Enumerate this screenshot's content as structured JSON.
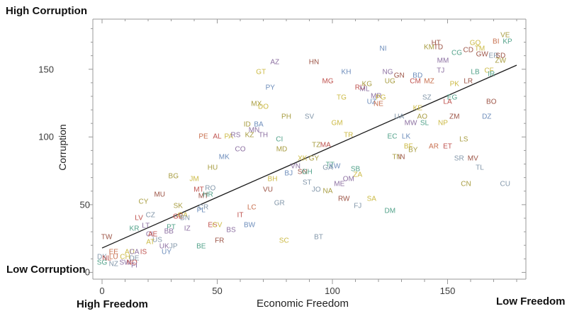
{
  "titles": {
    "top_left": "High Corruption",
    "bottom_left_y": "Low Corruption",
    "y_axis": "Corruption",
    "x_axis": "Economic Freedom",
    "x_left": "High Freedom",
    "x_right": "Low Freedom"
  },
  "palette": {
    "b": "#6d8dbb",
    "s": "#8498ab",
    "r": "#bf524e",
    "d": "#9d5547",
    "o": "#c8704f",
    "y": "#ccba45",
    "v": "#a89d42",
    "t": "#52a28a",
    "p": "#8d71a2"
  },
  "frame_color": "#999999",
  "trend_color": "#1a1a1a",
  "chart_data": {
    "type": "scatter",
    "title": "",
    "xlabel": "Economic Freedom",
    "ylabel": "Corruption",
    "xlim": [
      -4,
      184
    ],
    "ylim": [
      -5,
      187
    ],
    "x_ticks": [
      {
        "v": "0",
        "x": 0
      },
      {
        "v": "50",
        "x": 50
      },
      {
        "v": "100",
        "x": 100
      },
      {
        "v": "150",
        "x": 150
      }
    ],
    "y_ticks": [
      {
        "v": "0",
        "y": 0,
        "right": 127
      },
      {
        "v": "50",
        "y": 50,
        "right": 127
      },
      {
        "v": "100",
        "y": 100,
        "right": 76
      },
      {
        "v": "150",
        "y": 150,
        "right": 76
      }
    ],
    "minor_tick_step": 10,
    "trend_line": {
      "x1": 0,
      "y1": 18,
      "x2": 180,
      "y2": 153
    },
    "points": [
      [
        "VE",
        175,
        175,
        "v"
      ],
      [
        "GQ",
        162,
        169,
        "y"
      ],
      [
        "BI",
        171,
        170,
        "o"
      ],
      [
        "KP",
        176,
        170,
        "t"
      ],
      [
        "HT",
        145,
        169,
        "d"
      ],
      [
        "KM",
        142,
        166,
        "v"
      ],
      [
        "TD",
        146,
        166,
        "d"
      ],
      [
        "CG",
        154,
        162,
        "t"
      ],
      [
        "CD",
        159,
        164,
        "d"
      ],
      [
        "TM",
        164,
        165,
        "y"
      ],
      [
        "GW",
        165,
        161,
        "d"
      ],
      [
        "ER",
        170,
        160,
        "s"
      ],
      [
        "SD",
        173,
        160,
        "d"
      ],
      [
        "ZW",
        173,
        156,
        "v"
      ],
      [
        "NI",
        122,
        165,
        "b"
      ],
      [
        "MM",
        148,
        156,
        "p"
      ],
      [
        "HN",
        92,
        155,
        "d"
      ],
      [
        "AZ",
        75,
        155,
        "p"
      ],
      [
        "GT",
        69,
        148,
        "y"
      ],
      [
        "KH",
        106,
        148,
        "b"
      ],
      [
        "NG",
        124,
        148,
        "p"
      ],
      [
        "GN",
        129,
        145,
        "d"
      ],
      [
        "BD",
        137,
        145,
        "b"
      ],
      [
        "TJ",
        147,
        149,
        "p"
      ],
      [
        "LB",
        162,
        148,
        "t"
      ],
      [
        "CF",
        168,
        149,
        "y"
      ],
      [
        "IR",
        169,
        146,
        "t"
      ],
      [
        "MG",
        98,
        141,
        "r"
      ],
      [
        "UG",
        125,
        141,
        "v"
      ],
      [
        "CM",
        136,
        141,
        "r"
      ],
      [
        "MZ",
        142,
        141,
        "o"
      ],
      [
        "PK",
        153,
        139,
        "y"
      ],
      [
        "LR",
        159,
        141,
        "d"
      ],
      [
        "KG",
        115,
        139,
        "v"
      ],
      [
        "RU",
        112,
        136,
        "r"
      ],
      [
        "ML",
        114,
        135,
        "p"
      ],
      [
        "PY",
        73,
        136,
        "b"
      ],
      [
        "TG",
        104,
        129,
        "y"
      ],
      [
        "MR",
        119,
        130,
        "p"
      ],
      [
        "PG",
        121,
        129,
        "y"
      ],
      [
        "UZ",
        117,
        126,
        "b"
      ],
      [
        "NE",
        120,
        124,
        "o"
      ],
      [
        "SZ",
        141,
        129,
        "s"
      ],
      [
        "EG",
        152,
        129,
        "t"
      ],
      [
        "LA",
        150,
        126,
        "r"
      ],
      [
        "BO",
        169,
        126,
        "d"
      ],
      [
        "MX",
        67,
        124,
        "v"
      ],
      [
        "DO",
        70,
        122,
        "y"
      ],
      [
        "KE",
        137,
        121,
        "y"
      ],
      [
        "PH",
        80,
        115,
        "v"
      ],
      [
        "SV",
        90,
        115,
        "s"
      ],
      [
        "UA",
        129,
        115,
        "s"
      ],
      [
        "AO",
        139,
        115,
        "v"
      ],
      [
        "ZM",
        153,
        115,
        "d"
      ],
      [
        "DZ",
        167,
        115,
        "b"
      ],
      [
        "GM",
        102,
        110,
        "y"
      ],
      [
        "MW",
        134,
        110,
        "p"
      ],
      [
        "SL",
        140,
        110,
        "t"
      ],
      [
        "NP",
        148,
        110,
        "y"
      ],
      [
        "ID",
        63,
        109,
        "v"
      ],
      [
        "BA",
        68,
        109,
        "b"
      ],
      [
        "MN",
        66,
        105,
        "p"
      ],
      [
        "PE",
        44,
        100,
        "o"
      ],
      [
        "AL",
        50,
        100,
        "r"
      ],
      [
        "PA",
        55,
        100,
        "y"
      ],
      [
        "RS",
        58,
        101,
        "p"
      ],
      [
        "KZ",
        64,
        101,
        "v"
      ],
      [
        "TH",
        70,
        101,
        "p"
      ],
      [
        "CI",
        77,
        98,
        "t"
      ],
      [
        "TR",
        107,
        101,
        "y"
      ],
      [
        "EC",
        126,
        100,
        "t"
      ],
      [
        "LK",
        132,
        100,
        "b"
      ],
      [
        "LS",
        157,
        98,
        "v"
      ],
      [
        "CO",
        60,
        91,
        "p"
      ],
      [
        "MD",
        78,
        91,
        "v"
      ],
      [
        "TZ",
        93,
        94,
        "v"
      ],
      [
        "MA",
        97,
        94,
        "r"
      ],
      [
        "BF",
        133,
        93,
        "y"
      ],
      [
        "BY",
        135,
        90,
        "v"
      ],
      [
        "AR",
        144,
        93,
        "o"
      ],
      [
        "ET",
        150,
        93,
        "r"
      ],
      [
        "MK",
        53,
        85,
        "b"
      ],
      [
        "XK",
        87,
        84,
        "y"
      ],
      [
        "GY",
        92,
        84,
        "v"
      ],
      [
        "TN",
        128,
        85,
        "v"
      ],
      [
        "IN",
        130,
        85,
        "d"
      ],
      [
        "SR",
        155,
        84,
        "s"
      ],
      [
        "MV",
        161,
        84,
        "d"
      ],
      [
        "HU",
        48,
        77,
        "v"
      ],
      [
        "BG",
        31,
        71,
        "v"
      ],
      [
        "JM",
        40,
        69,
        "y"
      ],
      [
        "VN",
        84,
        78,
        "p"
      ],
      [
        "TT",
        99,
        79,
        "t"
      ],
      [
        "KW",
        101,
        78,
        "b"
      ],
      [
        "GA",
        98,
        77,
        "s"
      ],
      [
        "SB",
        110,
        76,
        "t"
      ],
      [
        "ZA",
        111,
        72,
        "y"
      ],
      [
        "OM",
        107,
        69,
        "p"
      ],
      [
        "TL",
        164,
        77,
        "s"
      ],
      [
        "MT",
        42,
        61,
        "r"
      ],
      [
        "RO",
        47,
        62,
        "s"
      ],
      [
        "MT",
        44,
        56,
        "d"
      ],
      [
        "HR",
        46,
        57,
        "t"
      ],
      [
        "MU",
        25,
        57,
        "d"
      ],
      [
        "BH",
        74,
        69,
        "y"
      ],
      [
        "BJ",
        81,
        73,
        "b"
      ],
      [
        "SN",
        87,
        74,
        "d"
      ],
      [
        "GH",
        89,
        74,
        "t"
      ],
      [
        "ST",
        89,
        66,
        "s"
      ],
      [
        "JO",
        93,
        61,
        "s"
      ],
      [
        "NA",
        98,
        60,
        "v"
      ],
      [
        "VU",
        72,
        61,
        "d"
      ],
      [
        "ME",
        103,
        65,
        "p"
      ],
      [
        "CN",
        158,
        65,
        "v"
      ],
      [
        "CU",
        175,
        65,
        "s"
      ],
      [
        "CY",
        18,
        52,
        "v"
      ],
      [
        "SK",
        33,
        49,
        "v"
      ],
      [
        "CR",
        44,
        48,
        "s"
      ],
      [
        "PL",
        43,
        46,
        "b"
      ],
      [
        "LC",
        65,
        48,
        "o"
      ],
      [
        "GR",
        77,
        51,
        "s"
      ],
      [
        "RW",
        105,
        54,
        "d"
      ],
      [
        "SA",
        117,
        54,
        "y"
      ],
      [
        "FJ",
        111,
        49,
        "s"
      ],
      [
        "DM",
        125,
        45,
        "t"
      ],
      [
        "LV",
        16,
        40,
        "r"
      ],
      [
        "CZ",
        21,
        42,
        "s"
      ],
      [
        "QA",
        35,
        42,
        "y"
      ],
      [
        "GE",
        33,
        41,
        "r"
      ],
      [
        "BN",
        36,
        40,
        "s"
      ],
      [
        "IT",
        60,
        42,
        "r"
      ],
      [
        "BW",
        64,
        35,
        "b"
      ],
      [
        "ES",
        48,
        35,
        "r"
      ],
      [
        "CV",
        50,
        35,
        "y"
      ],
      [
        "BS",
        56,
        31,
        "p"
      ],
      [
        "FR",
        51,
        23,
        "d"
      ],
      [
        "KR",
        14,
        32,
        "t"
      ],
      [
        "LT",
        19,
        34,
        "p"
      ],
      [
        "PT",
        30,
        33,
        "t"
      ],
      [
        "BB",
        29,
        30,
        "p"
      ],
      [
        "IZ",
        37,
        32,
        "p"
      ],
      [
        "TW",
        2,
        26,
        "d"
      ],
      [
        "CL",
        21,
        28,
        "p"
      ],
      [
        "AE",
        22,
        28,
        "r"
      ],
      [
        "US",
        24,
        24,
        "s"
      ],
      [
        "AT",
        21,
        22,
        "y"
      ],
      [
        "UK",
        27,
        19,
        "p"
      ],
      [
        "JP",
        31,
        19,
        "s"
      ],
      [
        "UY",
        28,
        15,
        "b"
      ],
      [
        "BE",
        43,
        19,
        "t"
      ],
      [
        "IS",
        18,
        15,
        "r"
      ],
      [
        "EE",
        5,
        15,
        "o"
      ],
      [
        "AU",
        12,
        15,
        "y"
      ],
      [
        "CA",
        14,
        15,
        "p"
      ],
      [
        "DK",
        0,
        11,
        "s"
      ],
      [
        "NL",
        2,
        10,
        "r"
      ],
      [
        "LU",
        5,
        11,
        "o"
      ],
      [
        "CH",
        10,
        11,
        "y"
      ],
      [
        "DE",
        14,
        10,
        "s"
      ],
      [
        "SG",
        0,
        7,
        "t"
      ],
      [
        "NZ",
        5,
        6,
        "s"
      ],
      [
        "SW",
        10,
        7,
        "p"
      ],
      [
        "NO",
        13,
        7,
        "r"
      ],
      [
        "FI",
        14,
        5,
        "p"
      ],
      [
        "SC",
        79,
        23,
        "y"
      ],
      [
        "BT",
        94,
        26,
        "s"
      ]
    ]
  }
}
